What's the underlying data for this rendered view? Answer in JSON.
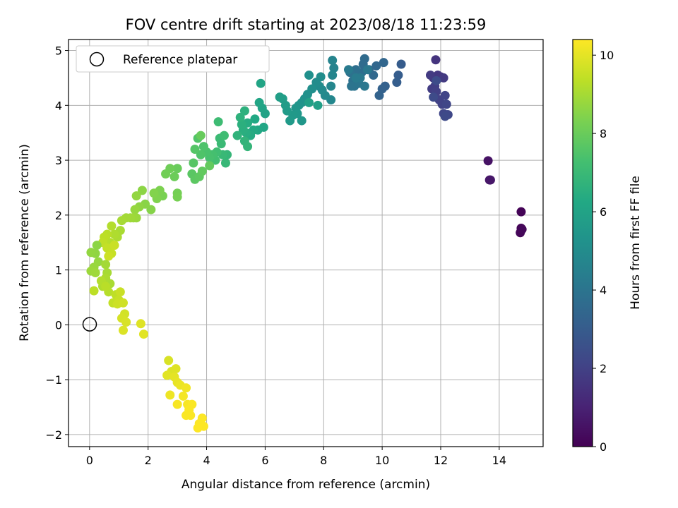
{
  "chart_data": {
    "type": "scatter",
    "title": "FOV centre drift starting at 2023/08/18 11:23:59",
    "xlabel": "Angular distance from reference (arcmin)",
    "ylabel": "Rotation from reference (arcmin)",
    "xlim": [
      -0.72,
      15.5
    ],
    "ylim": [
      -2.22,
      5.2
    ],
    "xticks": [
      0,
      2,
      4,
      6,
      8,
      10,
      12,
      14
    ],
    "xtick_labels": [
      "0",
      "2",
      "4",
      "6",
      "8",
      "10",
      "12",
      "14"
    ],
    "yticks": [
      -2,
      -1,
      0,
      1,
      2,
      3,
      4,
      5
    ],
    "ytick_labels": [
      "−2",
      "−1",
      "0",
      "1",
      "2",
      "3",
      "4",
      "5"
    ],
    "grid": true,
    "legend": {
      "position": "top-left",
      "entries": [
        "Reference platepar"
      ]
    },
    "reference_point": {
      "x": 0,
      "y": 0,
      "label": "Reference platepar"
    },
    "colorbar": {
      "label": "Hours from first FF file",
      "range": [
        0,
        10.4
      ],
      "ticks": [
        0,
        2,
        4,
        6,
        8,
        10
      ],
      "tick_labels": [
        "0",
        "2",
        "4",
        "6",
        "8",
        "10"
      ],
      "colormap": "viridis"
    },
    "series": [
      {
        "points": [
          [
            14.75,
            2.06,
            0.05
          ],
          [
            14.75,
            1.76,
            0.1
          ],
          [
            14.72,
            1.68,
            0.15
          ],
          [
            14.78,
            1.74,
            0.2
          ],
          [
            13.62,
            2.99,
            0.5
          ],
          [
            13.67,
            2.64,
            0.6
          ],
          [
            13.7,
            2.64,
            0.65
          ],
          [
            11.83,
            4.83,
            1.55
          ],
          [
            11.75,
            4.5,
            1.6
          ],
          [
            11.9,
            4.55,
            1.65
          ],
          [
            12.0,
            4.52,
            1.7
          ],
          [
            12.1,
            4.5,
            1.75
          ],
          [
            11.65,
            4.55,
            1.8
          ],
          [
            11.7,
            4.3,
            1.85
          ],
          [
            11.8,
            4.35,
            1.9
          ],
          [
            11.85,
            4.25,
            1.95
          ],
          [
            11.95,
            4.1,
            2.0
          ],
          [
            12.05,
            4.02,
            2.05
          ],
          [
            12.15,
            4.18,
            2.1
          ],
          [
            12.2,
            4.02,
            2.15
          ],
          [
            12.1,
            3.85,
            2.2
          ],
          [
            12.25,
            3.83,
            2.25
          ],
          [
            12.15,
            3.8,
            2.3
          ],
          [
            11.75,
            4.15,
            2.35
          ],
          [
            11.85,
            4.45,
            2.4
          ],
          [
            10.65,
            4.75,
            3.0
          ],
          [
            10.55,
            4.55,
            3.05
          ],
          [
            10.5,
            4.42,
            3.1
          ],
          [
            10.1,
            4.35,
            3.2
          ],
          [
            10.0,
            4.3,
            3.25
          ],
          [
            9.9,
            4.18,
            3.3
          ],
          [
            10.05,
            4.78,
            3.4
          ],
          [
            9.8,
            4.72,
            3.45
          ],
          [
            9.7,
            4.55,
            3.5
          ],
          [
            9.55,
            4.65,
            3.55
          ],
          [
            9.4,
            4.85,
            3.6
          ],
          [
            9.35,
            4.75,
            3.65
          ],
          [
            9.3,
            4.6,
            3.7
          ],
          [
            9.2,
            4.55,
            3.75
          ],
          [
            9.1,
            4.65,
            3.8
          ],
          [
            9.0,
            4.45,
            3.85
          ],
          [
            8.9,
            4.6,
            3.9
          ],
          [
            9.05,
            4.35,
            3.95
          ],
          [
            8.95,
            4.35,
            4.0
          ],
          [
            9.2,
            4.4,
            4.05
          ],
          [
            9.4,
            4.35,
            4.1
          ],
          [
            9.5,
            4.65,
            4.15
          ],
          [
            9.25,
            4.5,
            4.2
          ],
          [
            8.85,
            4.65,
            4.25
          ],
          [
            9.1,
            4.5,
            4.3
          ],
          [
            8.35,
            4.68,
            4.6
          ],
          [
            8.3,
            4.82,
            4.65
          ],
          [
            8.3,
            4.55,
            4.7
          ],
          [
            8.25,
            4.35,
            4.75
          ],
          [
            8.25,
            4.1,
            4.8
          ],
          [
            8.05,
            4.18,
            4.85
          ],
          [
            7.95,
            4.28,
            4.9
          ],
          [
            7.85,
            4.35,
            4.95
          ],
          [
            7.75,
            4.42,
            5.0
          ],
          [
            7.9,
            4.52,
            5.05
          ],
          [
            7.6,
            4.3,
            5.1
          ],
          [
            7.5,
            4.55,
            5.15
          ],
          [
            7.45,
            4.2,
            5.2
          ],
          [
            7.35,
            4.12,
            5.25
          ],
          [
            7.25,
            4.05,
            5.3
          ],
          [
            7.15,
            4.0,
            5.35
          ],
          [
            7.05,
            3.95,
            5.4
          ],
          [
            7.25,
            3.72,
            5.45
          ],
          [
            7.1,
            3.85,
            5.5
          ],
          [
            6.95,
            3.82,
            5.55
          ],
          [
            6.85,
            3.72,
            5.6
          ],
          [
            6.75,
            3.9,
            5.65
          ],
          [
            6.7,
            4.0,
            5.7
          ],
          [
            6.6,
            4.12,
            5.75
          ],
          [
            6.5,
            4.15,
            5.8
          ],
          [
            7.8,
            4.0,
            5.85
          ],
          [
            7.5,
            4.05,
            5.9
          ],
          [
            6.0,
            3.85,
            5.95
          ],
          [
            5.9,
            3.95,
            6.0
          ],
          [
            5.85,
            4.4,
            6.05
          ],
          [
            5.8,
            4.05,
            6.1
          ],
          [
            5.95,
            3.6,
            6.15
          ],
          [
            5.75,
            3.55,
            6.2
          ],
          [
            5.65,
            3.75,
            6.25
          ],
          [
            5.6,
            3.55,
            6.3
          ],
          [
            5.5,
            3.45,
            6.35
          ],
          [
            5.4,
            3.68,
            6.4
          ],
          [
            5.35,
            3.5,
            6.45
          ],
          [
            5.25,
            3.55,
            6.5
          ],
          [
            5.2,
            3.65,
            6.55
          ],
          [
            5.3,
            3.9,
            6.6
          ],
          [
            5.15,
            3.78,
            6.65
          ],
          [
            5.05,
            3.45,
            6.7
          ],
          [
            5.3,
            3.35,
            6.75
          ],
          [
            5.4,
            3.25,
            6.8
          ],
          [
            4.7,
            3.1,
            6.85
          ],
          [
            4.65,
            2.95,
            6.9
          ],
          [
            4.55,
            3.1,
            6.95
          ],
          [
            4.5,
            3.3,
            7.0
          ],
          [
            4.45,
            3.4,
            7.05
          ],
          [
            4.4,
            3.7,
            7.1
          ],
          [
            4.6,
            3.45,
            7.15
          ],
          [
            4.35,
            3.15,
            7.2
          ],
          [
            4.3,
            3.0,
            7.25
          ],
          [
            4.2,
            3.1,
            7.3
          ],
          [
            4.1,
            3.05,
            7.35
          ],
          [
            4.0,
            3.15,
            7.4
          ],
          [
            3.9,
            3.25,
            7.45
          ],
          [
            3.8,
            3.1,
            7.5
          ],
          [
            3.7,
            3.4,
            7.55
          ],
          [
            3.6,
            3.2,
            7.6
          ],
          [
            3.55,
            2.95,
            7.65
          ],
          [
            3.5,
            2.75,
            7.7
          ],
          [
            3.6,
            2.65,
            7.75
          ],
          [
            3.75,
            2.7,
            7.8
          ],
          [
            3.85,
            2.8,
            7.85
          ],
          [
            4.1,
            2.9,
            7.9
          ],
          [
            3.8,
            3.45,
            7.95
          ],
          [
            3.0,
            2.85,
            8.0
          ],
          [
            2.9,
            2.7,
            8.05
          ],
          [
            2.75,
            2.85,
            8.1
          ],
          [
            2.6,
            2.75,
            8.15
          ],
          [
            3.0,
            2.4,
            8.2
          ],
          [
            3.0,
            2.33,
            8.25
          ],
          [
            2.5,
            2.35,
            8.3
          ],
          [
            2.4,
            2.45,
            8.35
          ],
          [
            2.3,
            2.3,
            8.4
          ],
          [
            2.2,
            2.4,
            8.45
          ],
          [
            2.1,
            2.1,
            8.5
          ],
          [
            1.9,
            2.2,
            8.55
          ],
          [
            1.8,
            2.45,
            8.6
          ],
          [
            1.7,
            2.15,
            8.65
          ],
          [
            1.6,
            2.35,
            8.7
          ],
          [
            1.55,
            2.1,
            8.75
          ],
          [
            1.6,
            1.95,
            8.8
          ],
          [
            1.5,
            1.95,
            8.85
          ],
          [
            1.4,
            1.95,
            8.9
          ],
          [
            1.25,
            1.95,
            8.95
          ],
          [
            1.1,
            1.9,
            9.0
          ],
          [
            1.05,
            1.72,
            9.05
          ],
          [
            0.95,
            1.6,
            9.1
          ],
          [
            0.85,
            1.65,
            9.15
          ],
          [
            0.75,
            1.8,
            9.2
          ],
          [
            0.7,
            1.5,
            9.25
          ],
          [
            0.6,
            1.65,
            9.3
          ],
          [
            0.5,
            1.6,
            9.35
          ],
          [
            0.45,
            1.5,
            9.4
          ],
          [
            0.6,
            1.4,
            9.45
          ],
          [
            0.75,
            1.3,
            9.5
          ],
          [
            0.85,
            1.45,
            9.55
          ],
          [
            0.65,
            1.25,
            9.6
          ],
          [
            0.25,
            1.45,
            8.6
          ],
          [
            0.2,
            1.3,
            8.65
          ],
          [
            0.05,
            1.32,
            8.7
          ],
          [
            0.3,
            1.15,
            8.75
          ],
          [
            0.15,
            1.05,
            8.8
          ],
          [
            0.05,
            0.98,
            8.85
          ],
          [
            0.2,
            0.95,
            8.9
          ],
          [
            0.55,
            1.1,
            8.95
          ],
          [
            0.6,
            0.95,
            9.0
          ],
          [
            0.7,
            0.75,
            9.05
          ],
          [
            0.55,
            0.85,
            9.1
          ],
          [
            0.45,
            0.7,
            9.15
          ],
          [
            0.4,
            0.8,
            9.2
          ],
          [
            0.65,
            0.6,
            9.25
          ],
          [
            0.55,
            0.7,
            9.3
          ],
          [
            0.15,
            0.62,
            9.35
          ],
          [
            0.9,
            0.55,
            9.4
          ],
          [
            0.8,
            0.4,
            9.45
          ],
          [
            1.0,
            0.45,
            9.5
          ],
          [
            1.05,
            0.6,
            9.55
          ],
          [
            0.95,
            0.38,
            9.6
          ],
          [
            1.15,
            0.4,
            9.65
          ],
          [
            1.2,
            0.2,
            9.7
          ],
          [
            1.1,
            0.12,
            9.75
          ],
          [
            1.25,
            0.05,
            9.8
          ],
          [
            1.15,
            -0.1,
            9.85
          ],
          [
            1.75,
            0.02,
            9.9
          ],
          [
            1.85,
            -0.17,
            9.95
          ],
          [
            2.7,
            -0.65,
            9.8
          ],
          [
            2.8,
            -0.85,
            9.85
          ],
          [
            2.95,
            -0.8,
            9.9
          ],
          [
            2.65,
            -0.92,
            9.95
          ],
          [
            2.9,
            -0.95,
            10.0
          ],
          [
            3.0,
            -1.05,
            10.05
          ],
          [
            3.1,
            -1.1,
            10.1
          ],
          [
            2.75,
            -1.28,
            10.15
          ],
          [
            3.3,
            -1.15,
            10.2
          ],
          [
            3.2,
            -1.3,
            10.25
          ],
          [
            3.0,
            -1.45,
            10.3
          ],
          [
            3.35,
            -1.45,
            10.3
          ],
          [
            3.5,
            -1.45,
            10.35
          ],
          [
            3.4,
            -1.55,
            10.35
          ],
          [
            3.3,
            -1.65,
            10.35
          ],
          [
            3.45,
            -1.65,
            10.35
          ],
          [
            3.85,
            -1.7,
            10.38
          ],
          [
            3.9,
            -1.85,
            10.38
          ],
          [
            3.75,
            -1.8,
            10.38
          ],
          [
            3.7,
            -1.88,
            10.4
          ]
        ]
      }
    ]
  }
}
